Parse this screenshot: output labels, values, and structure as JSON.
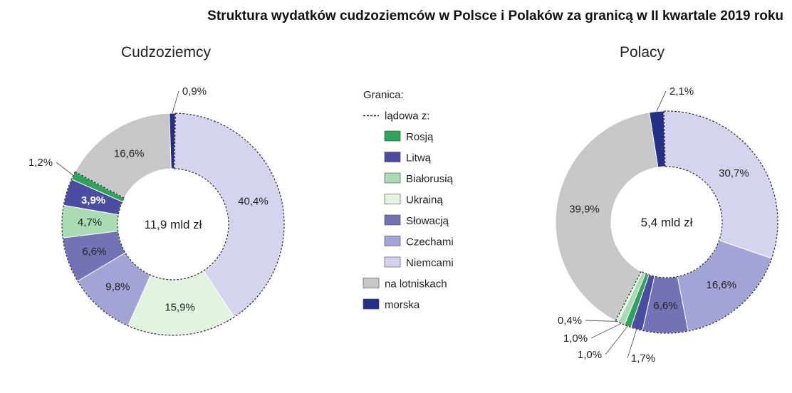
{
  "title": "Struktura wydatków cudzoziemców w Polsce i Polaków za granicą w II kwartale 2019 roku",
  "colors": {
    "rosja": "#2fa35a",
    "litwa": "#4b4da2",
    "bialorus": "#a9dcb2",
    "ukraina": "#e0f4e0",
    "slowacja": "#7272b4",
    "czechy": "#a4a3d6",
    "niemcy": "#d4d4ee",
    "lotniska": "#c6c7c6",
    "morska": "#243087"
  },
  "legend": {
    "heading": "Granica:",
    "land_label": "lądowa z:",
    "items": [
      {
        "label": "Rosją",
        "color_key": "rosja"
      },
      {
        "label": "Litwą",
        "color_key": "litwa"
      },
      {
        "label": "Białorusią",
        "color_key": "bialorus"
      },
      {
        "label": "Ukrainą",
        "color_key": "ukraina"
      },
      {
        "label": "Słowacją",
        "color_key": "slowacja"
      },
      {
        "label": "Czechami",
        "color_key": "czechy"
      },
      {
        "label": "Niemcami",
        "color_key": "niemcy"
      },
      {
        "label": "na lotniskach",
        "color_key": "lotniska"
      },
      {
        "label": "morska",
        "color_key": "morska"
      }
    ]
  },
  "chart_data": [
    {
      "type": "pie",
      "subtitle": "Cudzoziemcy",
      "center_label": "11,9 mld zł",
      "slices": [
        {
          "category": "morska",
          "value": 0.9,
          "label": "0,9%"
        },
        {
          "category": "Niemcami",
          "value": 40.4,
          "label": "40,4%"
        },
        {
          "category": "Ukrainą",
          "value": 15.9,
          "label": "15,9%"
        },
        {
          "category": "Czechami",
          "value": 9.8,
          "label": "9,8%"
        },
        {
          "category": "Słowacją",
          "value": 6.6,
          "label": "6,6%"
        },
        {
          "category": "Białorusią",
          "value": 4.7,
          "label": "4,7%"
        },
        {
          "category": "Litwą",
          "value": 3.9,
          "label": "3,9%"
        },
        {
          "category": "Rosją",
          "value": 1.2,
          "label": "1,2%"
        },
        {
          "category": "na lotniskach",
          "value": 16.6,
          "label": "16,6%"
        }
      ]
    },
    {
      "type": "pie",
      "subtitle": "Polacy",
      "center_label": "5,4 mld zł",
      "slices": [
        {
          "category": "morska",
          "value": 2.1,
          "label": "2,1%"
        },
        {
          "category": "Niemcami",
          "value": 30.7,
          "label": "30,7%"
        },
        {
          "category": "Czechami",
          "value": 16.6,
          "label": "16,6%"
        },
        {
          "category": "Słowacją",
          "value": 6.6,
          "label": "6,6%"
        },
        {
          "category": "Litwą",
          "value": 1.7,
          "label": "1,7%"
        },
        {
          "category": "Rosją",
          "value": 1.0,
          "label": "1,0%"
        },
        {
          "category": "Białorusią",
          "value": 1.0,
          "label": "1,0%"
        },
        {
          "category": "Ukrainą",
          "value": 0.4,
          "label": "0,4%"
        },
        {
          "category": "na lotniskach",
          "value": 39.9,
          "label": "39,9%"
        }
      ]
    }
  ]
}
